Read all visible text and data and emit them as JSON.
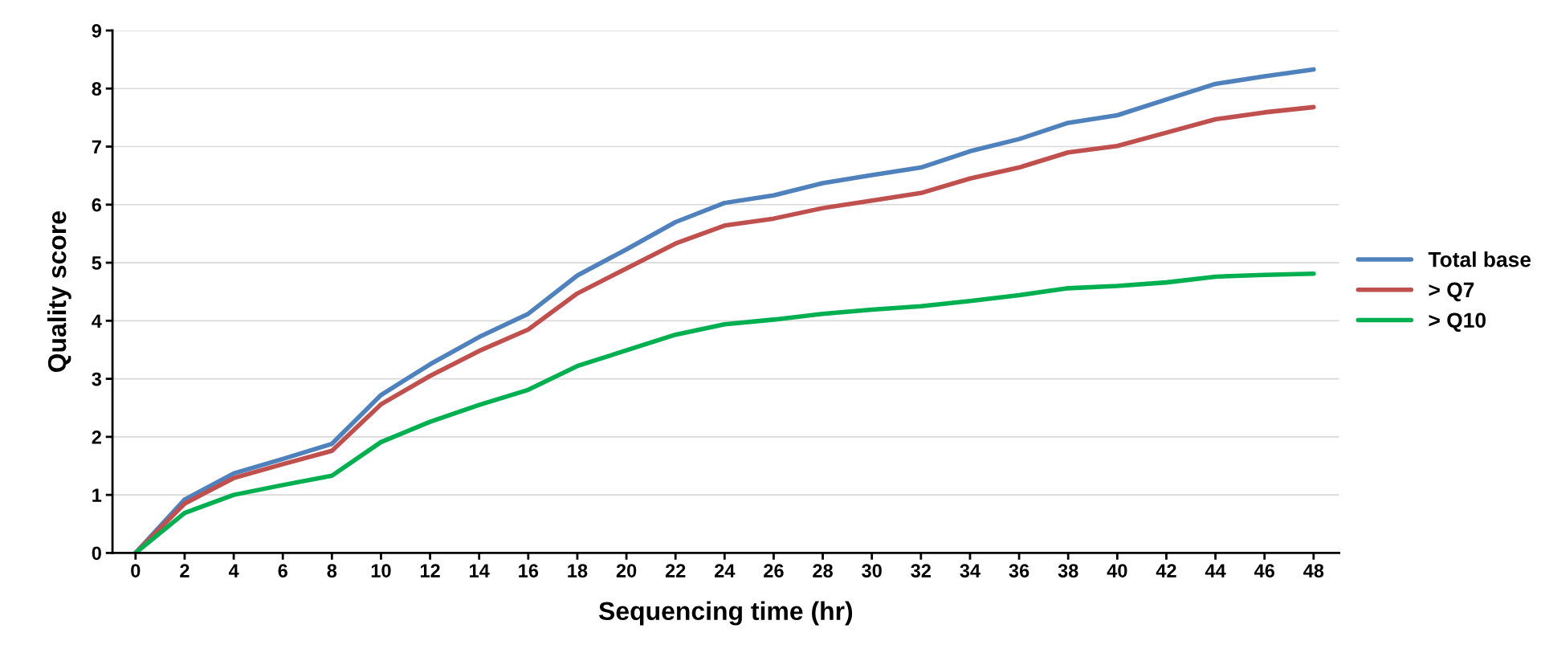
{
  "chart_data": {
    "type": "line",
    "xlabel": "Sequencing time (hr)",
    "ylabel": "Quality score",
    "categories": [
      "0",
      "2",
      "4",
      "6",
      "8",
      "10",
      "12",
      "14",
      "16",
      "18",
      "20",
      "22",
      "24",
      "26",
      "28",
      "30",
      "32",
      "34",
      "36",
      "38",
      "40",
      "42",
      "44",
      "46",
      "48"
    ],
    "series": [
      {
        "name": "Total base",
        "color": "#4f81bd",
        "values": [
          0,
          0.92,
          1.37,
          1.62,
          1.88,
          2.72,
          3.25,
          3.72,
          4.12,
          4.78,
          5.23,
          5.7,
          6.03,
          6.16,
          6.37,
          6.51,
          6.64,
          6.92,
          7.13,
          7.41,
          7.54,
          7.81,
          8.08,
          8.21,
          8.33
        ]
      },
      {
        "name": "> Q7",
        "color": "#c0504d",
        "values": [
          0,
          0.85,
          1.29,
          1.53,
          1.76,
          2.56,
          3.05,
          3.48,
          3.85,
          4.47,
          4.9,
          5.33,
          5.64,
          5.76,
          5.94,
          6.07,
          6.2,
          6.45,
          6.64,
          6.9,
          7.01,
          7.24,
          7.47,
          7.59,
          7.68
        ]
      },
      {
        "name": "> Q10",
        "color": "#00b050",
        "values": [
          0,
          0.69,
          1.0,
          1.17,
          1.33,
          1.91,
          2.26,
          2.55,
          2.81,
          3.22,
          3.49,
          3.76,
          3.94,
          4.02,
          4.12,
          4.19,
          4.25,
          4.34,
          4.44,
          4.56,
          4.6,
          4.66,
          4.76,
          4.79,
          4.81
        ]
      }
    ],
    "ylim": [
      0,
      9
    ],
    "yticks": [
      0,
      1,
      2,
      3,
      4,
      5,
      6,
      7,
      8,
      9
    ],
    "grid": "y",
    "legend": "right",
    "marker": "none",
    "line_style": "solid"
  }
}
